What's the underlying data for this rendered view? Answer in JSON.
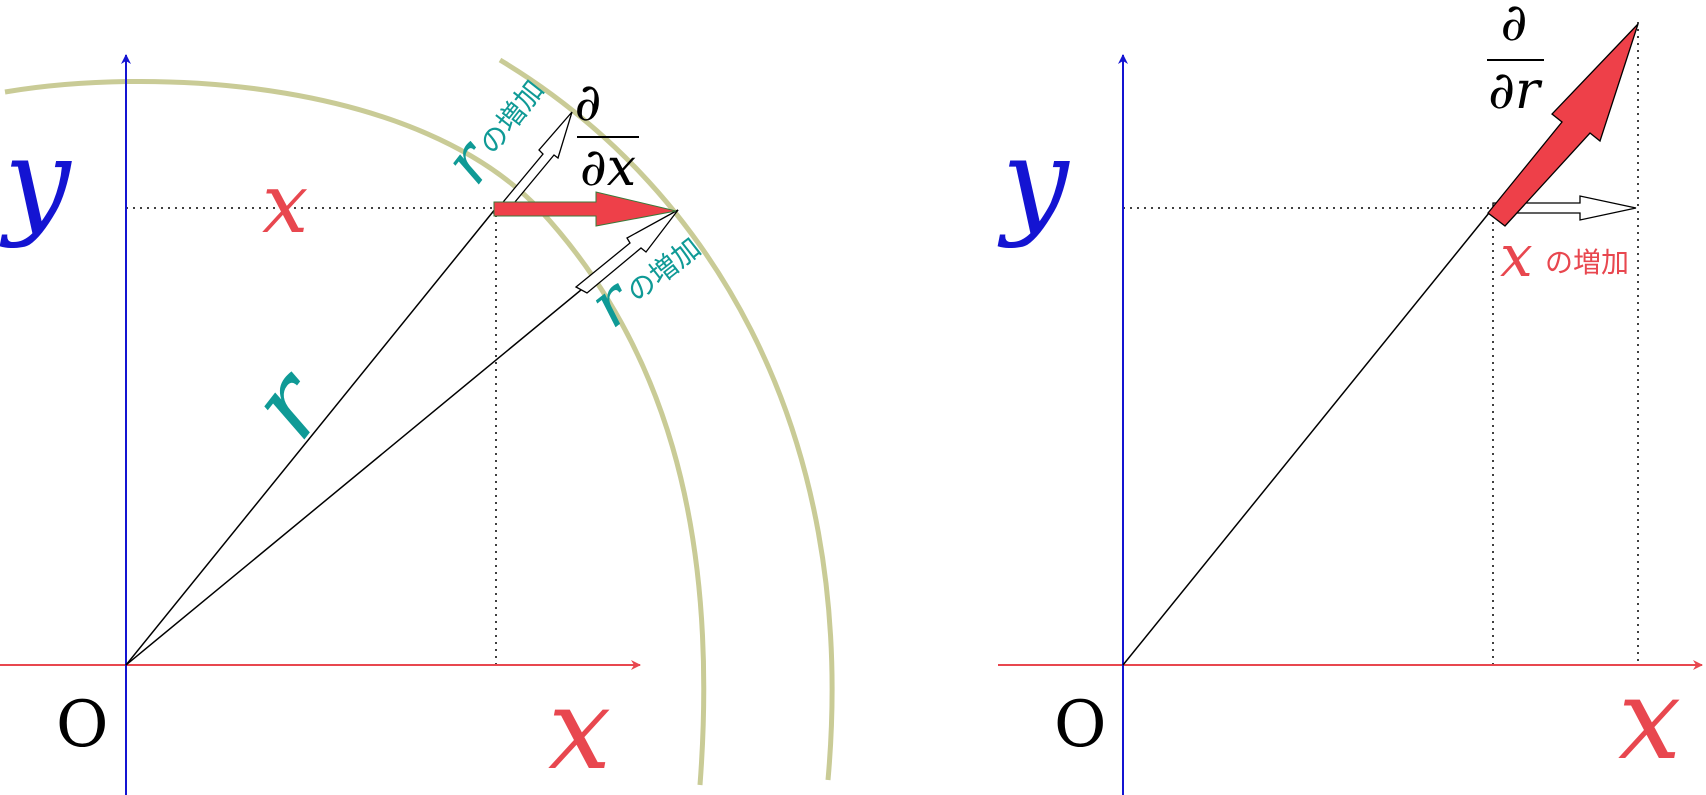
{
  "colors": {
    "x_axis": "#e8474f",
    "y_axis": "#1414d2",
    "r_label": "#0f9a96",
    "arc": "#c9cb96",
    "arrow_fill": "#ee4049",
    "ink": "#000000"
  },
  "left_panel": {
    "origin_label": "O",
    "x_axis_label": "x",
    "y_axis_label": "y",
    "x_coordinate_label": "x",
    "r_label": "r",
    "upper_increase": {
      "var": "r",
      "text": "の増加"
    },
    "lower_increase": {
      "var": "r",
      "text": "の増加"
    },
    "partial": {
      "numerator": "∂",
      "denominator": "∂x"
    }
  },
  "right_panel": {
    "origin_label": "O",
    "x_axis_label": "x",
    "y_axis_label": "y",
    "x_increase": {
      "var": "x",
      "text": "の増加"
    },
    "partial": {
      "numerator": "∂",
      "denominator": "∂r"
    }
  }
}
